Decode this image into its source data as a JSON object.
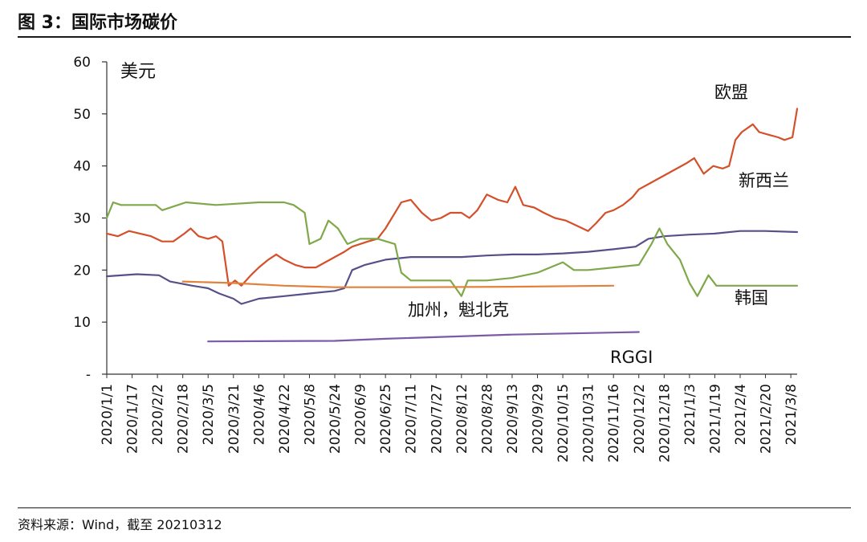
{
  "title": "图 3：国际市场碳价",
  "source": "资料来源：Wind，截至 20210312",
  "chart_data": {
    "type": "line",
    "ylabel": "美元",
    "ylim": [
      0,
      60
    ],
    "yticks": [
      {
        "value": 60,
        "label": "60"
      },
      {
        "value": 50,
        "label": "50"
      },
      {
        "value": 40,
        "label": "40"
      },
      {
        "value": 30,
        "label": "30"
      },
      {
        "value": 20,
        "label": "20"
      },
      {
        "value": 10,
        "label": "10"
      },
      {
        "value": 0,
        "label": "-"
      }
    ],
    "xlim": [
      "2020-01-01",
      "2021-03-12"
    ],
    "xticks": [
      "2020/1/1",
      "2020/1/17",
      "2020/2/2",
      "2020/2/18",
      "2020/3/5",
      "2020/3/21",
      "2020/4/6",
      "2020/4/22",
      "2020/5/8",
      "2020/5/24",
      "2020/6/9",
      "2020/6/25",
      "2020/7/11",
      "2020/7/27",
      "2020/8/12",
      "2020/8/28",
      "2020/9/13",
      "2020/9/29",
      "2020/10/15",
      "2020/10/31",
      "2020/11/16",
      "2020/12/2",
      "2020/12/18",
      "2021/1/3",
      "2021/1/19",
      "2021/2/4",
      "2021/2/20",
      "2021/3/8"
    ],
    "series": [
      {
        "name": "欧盟",
        "color": "#d4502a",
        "points": [
          [
            "2020-01-01",
            27
          ],
          [
            "2020-01-08",
            26.5
          ],
          [
            "2020-01-15",
            27.5
          ],
          [
            "2020-01-22",
            27
          ],
          [
            "2020-01-29",
            26.5
          ],
          [
            "2020-02-05",
            25.5
          ],
          [
            "2020-02-12",
            25.5
          ],
          [
            "2020-02-19",
            27
          ],
          [
            "2020-02-23",
            28
          ],
          [
            "2020-02-28",
            26.5
          ],
          [
            "2020-03-05",
            26
          ],
          [
            "2020-03-10",
            26.5
          ],
          [
            "2020-03-14",
            25.5
          ],
          [
            "2020-03-18",
            17
          ],
          [
            "2020-03-22",
            18
          ],
          [
            "2020-03-26",
            17
          ],
          [
            "2020-04-01",
            19
          ],
          [
            "2020-04-06",
            20.5
          ],
          [
            "2020-04-12",
            22
          ],
          [
            "2020-04-17",
            23
          ],
          [
            "2020-04-22",
            22
          ],
          [
            "2020-04-29",
            21
          ],
          [
            "2020-05-05",
            20.5
          ],
          [
            "2020-05-12",
            20.5
          ],
          [
            "2020-05-18",
            21.5
          ],
          [
            "2020-05-24",
            22.5
          ],
          [
            "2020-05-30",
            23.5
          ],
          [
            "2020-06-04",
            24.5
          ],
          [
            "2020-06-09",
            25
          ],
          [
            "2020-06-14",
            25.5
          ],
          [
            "2020-06-20",
            26
          ],
          [
            "2020-06-25",
            28
          ],
          [
            "2020-06-30",
            30.5
          ],
          [
            "2020-07-05",
            33
          ],
          [
            "2020-07-11",
            33.5
          ],
          [
            "2020-07-18",
            31
          ],
          [
            "2020-07-24",
            29.5
          ],
          [
            "2020-07-30",
            30
          ],
          [
            "2020-08-05",
            31
          ],
          [
            "2020-08-12",
            31
          ],
          [
            "2020-08-17",
            30
          ],
          [
            "2020-08-22",
            31.5
          ],
          [
            "2020-08-28",
            34.5
          ],
          [
            "2020-09-04",
            33.5
          ],
          [
            "2020-09-10",
            33
          ],
          [
            "2020-09-15",
            36
          ],
          [
            "2020-09-20",
            32.5
          ],
          [
            "2020-09-27",
            32
          ],
          [
            "2020-10-03",
            31
          ],
          [
            "2020-10-10",
            30
          ],
          [
            "2020-10-17",
            29.5
          ],
          [
            "2020-10-24",
            28.5
          ],
          [
            "2020-10-31",
            27.5
          ],
          [
            "2020-11-05",
            29
          ],
          [
            "2020-11-11",
            31
          ],
          [
            "2020-11-16",
            31.5
          ],
          [
            "2020-11-22",
            32.5
          ],
          [
            "2020-11-28",
            34
          ],
          [
            "2020-12-02",
            35.5
          ],
          [
            "2020-12-08",
            36.5
          ],
          [
            "2020-12-14",
            37.5
          ],
          [
            "2020-12-20",
            38.5
          ],
          [
            "2020-12-26",
            39.5
          ],
          [
            "2021-01-01",
            40.5
          ],
          [
            "2021-01-06",
            41.5
          ],
          [
            "2021-01-12",
            38.5
          ],
          [
            "2021-01-18",
            40
          ],
          [
            "2021-01-24",
            39.5
          ],
          [
            "2021-01-28",
            40
          ],
          [
            "2021-02-01",
            45
          ],
          [
            "2021-02-05",
            46.5
          ],
          [
            "2021-02-12",
            48
          ],
          [
            "2021-02-16",
            46.5
          ],
          [
            "2021-02-22",
            46
          ],
          [
            "2021-02-28",
            45.5
          ],
          [
            "2021-03-04",
            45
          ],
          [
            "2021-03-09",
            45.5
          ],
          [
            "2021-03-12",
            51
          ]
        ]
      },
      {
        "name": "新西兰",
        "color": "#56508a",
        "points": [
          [
            "2020-01-01",
            18.8
          ],
          [
            "2020-01-20",
            19.2
          ],
          [
            "2020-02-03",
            19
          ],
          [
            "2020-02-10",
            17.8
          ],
          [
            "2020-02-24",
            17
          ],
          [
            "2020-03-05",
            16.5
          ],
          [
            "2020-03-12",
            15.5
          ],
          [
            "2020-03-21",
            14.5
          ],
          [
            "2020-03-26",
            13.5
          ],
          [
            "2020-04-06",
            14.5
          ],
          [
            "2020-04-22",
            15
          ],
          [
            "2020-05-08",
            15.5
          ],
          [
            "2020-05-24",
            16
          ],
          [
            "2020-05-30",
            16.5
          ],
          [
            "2020-06-04",
            20
          ],
          [
            "2020-06-12",
            21
          ],
          [
            "2020-06-25",
            22
          ],
          [
            "2020-07-11",
            22.5
          ],
          [
            "2020-07-27",
            22.5
          ],
          [
            "2020-08-12",
            22.5
          ],
          [
            "2020-08-28",
            22.8
          ],
          [
            "2020-09-13",
            23
          ],
          [
            "2020-09-29",
            23
          ],
          [
            "2020-10-15",
            23.2
          ],
          [
            "2020-10-31",
            23.5
          ],
          [
            "2020-11-16",
            24
          ],
          [
            "2020-11-30",
            24.5
          ],
          [
            "2020-12-08",
            26
          ],
          [
            "2020-12-18",
            26.5
          ],
          [
            "2021-01-03",
            26.8
          ],
          [
            "2021-01-19",
            27
          ],
          [
            "2021-02-04",
            27.5
          ],
          [
            "2021-02-20",
            27.5
          ],
          [
            "2021-03-12",
            27.3
          ]
        ]
      },
      {
        "name": "韩国",
        "color": "#7fa84a",
        "points": [
          [
            "2020-01-01",
            30
          ],
          [
            "2020-01-05",
            33
          ],
          [
            "2020-01-10",
            32.5
          ],
          [
            "2020-02-01",
            32.5
          ],
          [
            "2020-02-05",
            31.5
          ],
          [
            "2020-02-20",
            33
          ],
          [
            "2020-03-10",
            32.5
          ],
          [
            "2020-04-06",
            33
          ],
          [
            "2020-04-22",
            33
          ],
          [
            "2020-04-28",
            32.5
          ],
          [
            "2020-05-05",
            31
          ],
          [
            "2020-05-08",
            25
          ],
          [
            "2020-05-15",
            26
          ],
          [
            "2020-05-20",
            29.5
          ],
          [
            "2020-05-26",
            28
          ],
          [
            "2020-06-01",
            25
          ],
          [
            "2020-06-09",
            26
          ],
          [
            "2020-06-20",
            26
          ],
          [
            "2020-07-01",
            25
          ],
          [
            "2020-07-05",
            19.5
          ],
          [
            "2020-07-11",
            18
          ],
          [
            "2020-07-27",
            18
          ],
          [
            "2020-08-05",
            18
          ],
          [
            "2020-08-12",
            15
          ],
          [
            "2020-08-16",
            18
          ],
          [
            "2020-08-28",
            18
          ],
          [
            "2020-09-13",
            18.5
          ],
          [
            "2020-09-29",
            19.5
          ],
          [
            "2020-10-15",
            21.5
          ],
          [
            "2020-10-22",
            20
          ],
          [
            "2020-10-31",
            20
          ],
          [
            "2020-11-16",
            20.5
          ],
          [
            "2020-12-02",
            21
          ],
          [
            "2020-12-10",
            25
          ],
          [
            "2020-12-15",
            28
          ],
          [
            "2020-12-20",
            25
          ],
          [
            "2020-12-28",
            22
          ],
          [
            "2021-01-03",
            17.5
          ],
          [
            "2021-01-08",
            15
          ],
          [
            "2021-01-15",
            19
          ],
          [
            "2021-01-20",
            17
          ],
          [
            "2021-02-04",
            17
          ],
          [
            "2021-02-20",
            17
          ],
          [
            "2021-03-12",
            17
          ]
        ]
      },
      {
        "name": "加州，魁北克",
        "color": "#e1823c",
        "points": [
          [
            "2020-02-18",
            17.8
          ],
          [
            "2020-03-21",
            17.5
          ],
          [
            "2020-04-22",
            17
          ],
          [
            "2020-05-24",
            16.7
          ],
          [
            "2020-07-11",
            16.7
          ],
          [
            "2020-09-13",
            16.8
          ],
          [
            "2020-11-16",
            17
          ]
        ]
      },
      {
        "name": "RGGI",
        "color": "#7b5aa6",
        "points": [
          [
            "2020-03-05",
            6.3
          ],
          [
            "2020-05-24",
            6.4
          ],
          [
            "2020-06-25",
            6.8
          ],
          [
            "2020-09-13",
            7.6
          ],
          [
            "2020-12-02",
            8.1
          ]
        ]
      }
    ]
  }
}
